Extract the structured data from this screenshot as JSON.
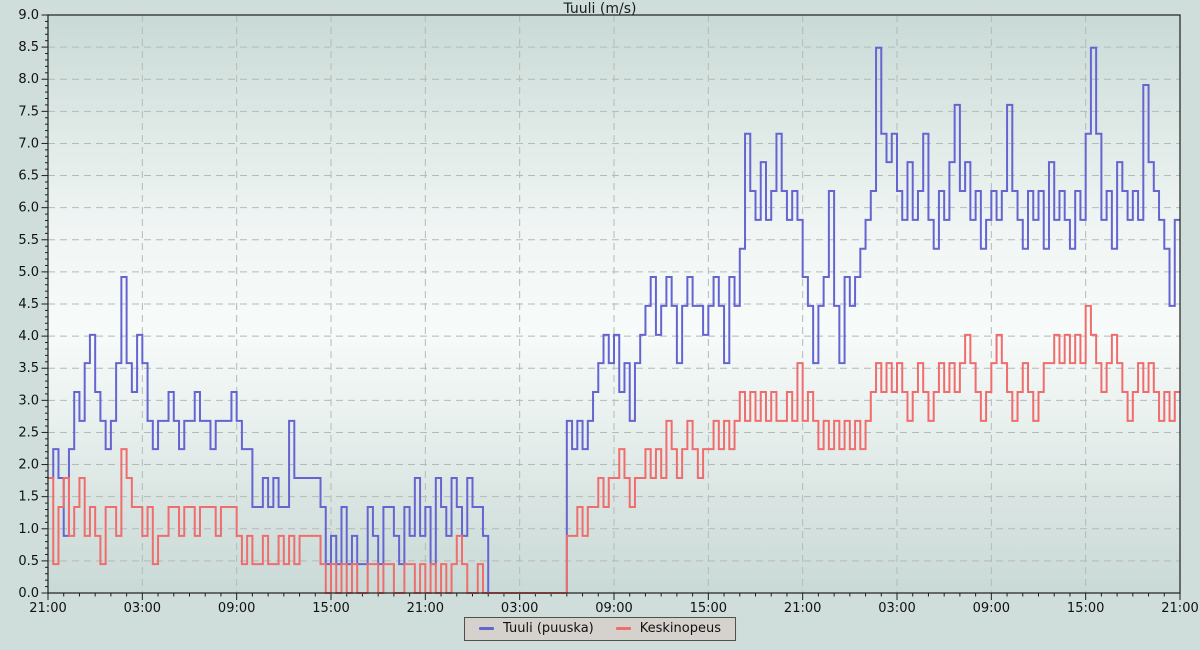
{
  "title": "Tuuli (m/s)",
  "legend": {
    "items": [
      {
        "label": "Tuuli (puuska)",
        "color": "#6565d2"
      },
      {
        "label": "Keskinopeus",
        "color": "#f06d6d"
      }
    ]
  },
  "colors": {
    "page_background": "#cfdeda",
    "plot_gradient_top": "#c9dad6",
    "plot_gradient_middle": "#f7fbfa",
    "plot_gradient_bottom": "#c9dad6",
    "grid": "#b4bab8",
    "axis": "#1e1e1e",
    "legend_background": "#d5d2cd",
    "gust_line": "#6565d2",
    "average_line": "#f06d6d"
  },
  "chart_data": {
    "type": "line",
    "step": true,
    "title": "Tuuli (m/s)",
    "xlabel": "",
    "ylabel": "",
    "grid": "dashed",
    "legend_position": "bottom-center",
    "x_unit": "time (HH:MM), 3 days span, samples every 20 min",
    "x_range_hours": [
      0,
      72
    ],
    "x_tick_hours": [
      0,
      6,
      12,
      18,
      24,
      30,
      36,
      42,
      48,
      54,
      60,
      66,
      72
    ],
    "x_tick_labels": [
      "21:00",
      "03:00",
      "09:00",
      "15:00",
      "21:00",
      "03:00",
      "09:00",
      "15:00",
      "21:00",
      "03:00",
      "09:00",
      "15:00",
      "21:00"
    ],
    "x_minor_tick_hours": 1,
    "ylim": [
      0,
      9
    ],
    "y_tick_step": 0.5,
    "y_minor_tick_step": 0.1,
    "y_tick_labels": [
      "0.0",
      "0.5",
      "1.0",
      "1.5",
      "2.0",
      "2.5",
      "3.0",
      "3.5",
      "4.0",
      "4.5",
      "5.0",
      "5.5",
      "6.0",
      "6.5",
      "7.0",
      "7.5",
      "8.0",
      "8.5",
      "9.0"
    ],
    "series": [
      {
        "name": "Tuuli (puuska)",
        "color": "#6565d2",
        "values": [
          1.79,
          2.24,
          1.79,
          0.89,
          2.24,
          3.13,
          2.68,
          3.58,
          4.02,
          3.13,
          2.68,
          2.24,
          2.68,
          3.58,
          4.92,
          3.58,
          3.13,
          4.02,
          3.58,
          2.68,
          2.24,
          2.68,
          2.68,
          3.13,
          2.68,
          2.24,
          2.68,
          2.68,
          3.13,
          2.68,
          2.68,
          2.24,
          2.68,
          2.68,
          2.68,
          3.13,
          2.68,
          2.24,
          2.24,
          1.34,
          1.34,
          1.79,
          1.34,
          1.79,
          1.34,
          1.34,
          2.68,
          1.79,
          1.79,
          1.79,
          1.79,
          1.79,
          1.34,
          0.45,
          0.89,
          0.45,
          1.34,
          0.45,
          0.89,
          0.45,
          0.45,
          1.34,
          0.89,
          0.45,
          1.34,
          1.34,
          0.89,
          0.45,
          1.34,
          0.89,
          1.79,
          0.89,
          1.34,
          0.45,
          1.79,
          1.34,
          0.89,
          1.79,
          1.34,
          0.89,
          1.79,
          1.34,
          1.34,
          0.89,
          0,
          0,
          0,
          0,
          0,
          0,
          0,
          0,
          0,
          0,
          0,
          0,
          0,
          0,
          0,
          2.68,
          2.24,
          2.68,
          2.24,
          2.68,
          3.13,
          3.58,
          4.02,
          3.58,
          4.02,
          3.13,
          3.58,
          2.68,
          3.58,
          4.02,
          4.47,
          4.92,
          4.02,
          4.47,
          4.92,
          4.47,
          3.58,
          4.47,
          4.92,
          4.47,
          4.47,
          4.02,
          4.47,
          4.92,
          4.47,
          3.58,
          4.92,
          4.47,
          5.36,
          7.15,
          6.26,
          5.81,
          6.71,
          5.81,
          6.26,
          7.15,
          6.26,
          5.81,
          6.26,
          5.81,
          4.92,
          4.47,
          3.58,
          4.47,
          4.92,
          6.26,
          4.47,
          3.58,
          4.92,
          4.47,
          4.92,
          5.36,
          5.81,
          6.26,
          8.49,
          7.15,
          6.71,
          7.15,
          6.26,
          5.81,
          6.71,
          5.81,
          6.26,
          7.15,
          5.81,
          5.36,
          6.26,
          5.81,
          6.71,
          7.6,
          6.26,
          6.71,
          5.81,
          6.26,
          5.36,
          5.81,
          6.26,
          5.81,
          6.26,
          7.6,
          6.26,
          5.81,
          5.36,
          6.26,
          5.81,
          6.26,
          5.36,
          6.71,
          5.81,
          6.26,
          5.81,
          5.36,
          6.26,
          5.81,
          7.15,
          8.49,
          7.15,
          5.81,
          6.26,
          5.36,
          6.71,
          6.26,
          5.81,
          6.26,
          5.81,
          7.91,
          6.71,
          6.26,
          5.81,
          5.36,
          4.47,
          5.81,
          5.81
        ]
      },
      {
        "name": "Keskinopeus",
        "color": "#f06d6d",
        "values": [
          1.79,
          0.45,
          1.34,
          1.79,
          0.89,
          1.34,
          1.79,
          0.89,
          1.34,
          0.89,
          0.45,
          1.34,
          1.34,
          0.89,
          2.24,
          1.79,
          1.34,
          1.34,
          0.89,
          1.34,
          0.45,
          0.89,
          0.89,
          1.34,
          1.34,
          0.89,
          1.34,
          1.34,
          0.89,
          1.34,
          1.34,
          1.34,
          0.89,
          1.34,
          1.34,
          1.34,
          0.89,
          0.45,
          0.89,
          0.45,
          0.45,
          0.89,
          0.45,
          0.45,
          0.89,
          0.45,
          0.89,
          0.45,
          0.89,
          0.89,
          0.89,
          0.89,
          0.45,
          0,
          0.45,
          0,
          0.45,
          0,
          0.45,
          0,
          0,
          0.45,
          0.45,
          0,
          0.45,
          0.45,
          0,
          0,
          0.45,
          0.45,
          0,
          0.45,
          0,
          0.45,
          0,
          0.45,
          0,
          0.45,
          0.89,
          0.45,
          0,
          0,
          0.45,
          0,
          0,
          0,
          0,
          0,
          0,
          0,
          0,
          0,
          0,
          0,
          0,
          0,
          0,
          0,
          0,
          0.89,
          0.89,
          1.34,
          0.89,
          1.34,
          1.34,
          1.79,
          1.34,
          1.79,
          1.79,
          2.24,
          1.79,
          1.34,
          1.79,
          1.79,
          2.24,
          1.79,
          2.24,
          1.79,
          2.68,
          2.24,
          1.79,
          2.24,
          2.68,
          2.24,
          1.79,
          2.24,
          2.24,
          2.68,
          2.24,
          2.68,
          2.24,
          2.68,
          3.13,
          2.68,
          3.13,
          2.68,
          3.13,
          2.68,
          3.13,
          2.68,
          2.68,
          3.13,
          2.68,
          3.58,
          2.68,
          3.13,
          2.68,
          2.24,
          2.68,
          2.24,
          2.68,
          2.24,
          2.68,
          2.24,
          2.68,
          2.24,
          2.68,
          3.13,
          3.58,
          3.13,
          3.58,
          3.13,
          3.58,
          3.13,
          2.68,
          3.13,
          3.58,
          3.13,
          2.68,
          3.13,
          3.58,
          3.13,
          3.58,
          3.13,
          3.58,
          4.02,
          3.58,
          3.13,
          2.68,
          3.13,
          3.58,
          4.02,
          3.58,
          3.13,
          2.68,
          3.13,
          3.58,
          3.13,
          2.68,
          3.13,
          3.58,
          3.58,
          4.02,
          3.58,
          4.02,
          3.58,
          4.02,
          3.58,
          4.47,
          4.02,
          3.58,
          3.13,
          3.58,
          4.02,
          3.58,
          3.13,
          2.68,
          3.13,
          3.58,
          3.13,
          3.58,
          3.13,
          2.68,
          3.13,
          2.68,
          3.13,
          3.13
        ]
      }
    ]
  }
}
